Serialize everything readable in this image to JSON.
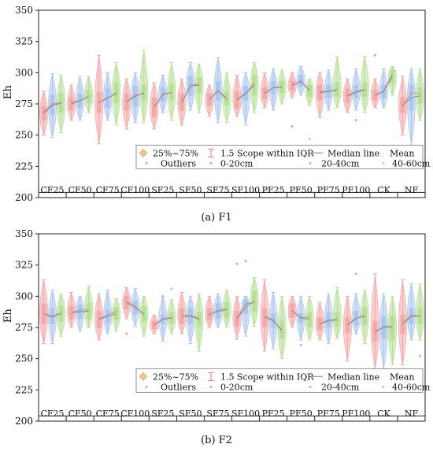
{
  "legend": {
    "box": "25%~75%",
    "whisker": "1.5 Scope within IQR",
    "median": "Median line",
    "mean": "Mean",
    "outliers": "Outliers",
    "d1": "0-20cm",
    "d2": "20-40cm",
    "d3": "40-60cm"
  },
  "colors": {
    "d1": "#f2a6a6",
    "d2": "#a9c4ec",
    "d3": "#b5de93",
    "box_legend": "#e8c98c",
    "median": "#b8a08a",
    "mean_line": "#8a8a99",
    "whisker": "#e07a7a"
  },
  "chart_data": [
    {
      "type": "box",
      "caption": "(a) F1",
      "ylabel": "Eh",
      "ylim": [
        200,
        350
      ],
      "yticks": [
        200,
        225,
        250,
        275,
        300,
        325,
        350
      ],
      "categories": [
        "CF25",
        "CF50",
        "CF75",
        "CF100",
        "SF25",
        "SF50",
        "SF75",
        "SF100",
        "PF25",
        "PF50",
        "PF75",
        "PF100",
        "CK",
        "NF"
      ],
      "series": [
        {
          "key": "d1",
          "name": "0-20cm",
          "boxes": [
            [
              250,
              262,
              268,
              273,
              285
            ],
            [
              262,
              270,
              276,
              280,
              290
            ],
            [
              243,
              268,
              276,
              284,
              314
            ],
            [
              255,
              270,
              277,
              283,
              295
            ],
            [
              255,
              265,
              272,
              280,
              292
            ],
            [
              258,
              270,
              276,
              283,
              295
            ],
            [
              265,
              274,
              278,
              283,
              290
            ],
            [
              265,
              272,
              278,
              285,
              298
            ],
            [
              272,
              279,
              283,
              288,
              300
            ],
            [
              280,
              286,
              290,
              293,
              300
            ],
            [
              264,
              278,
              285,
              290,
              300
            ],
            [
              268,
              276,
              281,
              287,
              295
            ],
            [
              272,
              278,
              282,
              286,
              295
            ],
            [
              250,
              268,
              273,
              280,
              297
            ]
          ]
        },
        {
          "key": "d2",
          "name": "20-40cm",
          "boxes": [
            [
              248,
              266,
              275,
              282,
              299
            ],
            [
              262,
              272,
              278,
              283,
              297
            ],
            [
              262,
              272,
              280,
              287,
              300
            ],
            [
              260,
              273,
              282,
              289,
              300
            ],
            [
              268,
              277,
              283,
              288,
              298
            ],
            [
              270,
              282,
              290,
              297,
              308
            ],
            [
              260,
              278,
              286,
              293,
              312
            ],
            [
              258,
              278,
              283,
              289,
              300
            ],
            [
              270,
              283,
              288,
              293,
              303
            ],
            [
              282,
              289,
              293,
              298,
              305
            ],
            [
              270,
              280,
              285,
              290,
              302
            ],
            [
              270,
              280,
              284,
              290,
              303
            ],
            [
              272,
              280,
              285,
              290,
              303
            ],
            [
              242,
              270,
              284,
              290,
              303
            ]
          ]
        },
        {
          "key": "d3",
          "name": "40-60cm",
          "boxes": [
            [
              252,
              268,
              276,
              283,
              298
            ],
            [
              268,
              276,
              281,
              286,
              297
            ],
            [
              258,
              276,
              283,
              292,
              308
            ],
            [
              260,
              278,
              283,
              290,
              318
            ],
            [
              262,
              278,
              284,
              290,
              308
            ],
            [
              268,
              284,
              291,
              296,
              307
            ],
            [
              260,
              274,
              278,
              285,
              300
            ],
            [
              268,
              282,
              292,
              298,
              308
            ],
            [
              275,
              284,
              288,
              293,
              302
            ],
            [
              274,
              281,
              286,
              290,
              295
            ],
            [
              272,
              281,
              286,
              292,
              313
            ],
            [
              268,
              281,
              286,
              292,
              313
            ],
            [
              282,
              292,
              299,
              302,
              305
            ],
            [
              262,
              275,
              283,
              288,
              303
            ]
          ]
        }
      ],
      "outliers": [
        {
          "category": "PF50",
          "series": "d1",
          "value": 257
        },
        {
          "category": "PF50",
          "series": "d3",
          "value": 247
        },
        {
          "category": "PF100",
          "series": "d2",
          "value": 262
        },
        {
          "category": "CK",
          "series": "d1",
          "value": 314
        }
      ],
      "grid": false,
      "legend_position": "bottom"
    },
    {
      "type": "box",
      "caption": "(b) F2",
      "ylabel": "Eh",
      "ylim": [
        200,
        350
      ],
      "yticks": [
        200,
        225,
        250,
        275,
        300,
        325,
        350
      ],
      "categories": [
        "CF25",
        "CF50",
        "CF75",
        "CF100",
        "SF25",
        "SF50",
        "SF75",
        "SF100",
        "PF25",
        "PF50",
        "PF75",
        "PF100",
        "CK",
        "NF"
      ],
      "series": [
        {
          "key": "d1",
          "name": "0-20cm",
          "boxes": [
            [
              262,
              278,
              286,
              294,
              313
            ],
            [
              275,
              282,
              287,
              292,
              303
            ],
            [
              265,
              275,
              282,
              288,
              302
            ],
            [
              282,
              290,
              296,
              300,
              307
            ],
            [
              270,
              274,
              277,
              280,
              285
            ],
            [
              270,
              278,
              284,
              290,
              303
            ],
            [
              275,
              281,
              285,
              290,
              300
            ],
            [
              268,
              276,
              282,
              288,
              300
            ],
            [
              256,
              276,
              284,
              290,
              313
            ],
            [
              275,
              283,
              288,
              294,
              300
            ],
            [
              265,
              273,
              278,
              283,
              295
            ],
            [
              248,
              271,
              277,
              283,
              300
            ],
            [
              242,
              264,
              271,
              280,
              318
            ],
            [
              245,
              270,
              278,
              285,
              313
            ]
          ]
        },
        {
          "key": "d2",
          "name": "20-40cm",
          "boxes": [
            [
              262,
              278,
              283,
              290,
              305
            ],
            [
              272,
              282,
              289,
              293,
              300
            ],
            [
              270,
              279,
              285,
              289,
              305
            ],
            [
              276,
              286,
              292,
              296,
              306
            ],
            [
              264,
              278,
              282,
              285,
              300
            ],
            [
              262,
              278,
              285,
              290,
              300
            ],
            [
              275,
              282,
              289,
              294,
              302
            ],
            [
              268,
              286,
              294,
              297,
              300
            ],
            [
              258,
              275,
              281,
              286,
              303
            ],
            [
              265,
              279,
              283,
              286,
              300
            ],
            [
              262,
              275,
              280,
              287,
              302
            ],
            [
              270,
              277,
              282,
              288,
              302
            ],
            [
              242,
              266,
              276,
              284,
              302
            ],
            [
              265,
              278,
              285,
              290,
              310
            ]
          ]
        },
        {
          "key": "d3",
          "name": "40-60cm",
          "boxes": [
            [
              268,
              280,
              287,
              292,
              302
            ],
            [
              275,
              282,
              289,
              294,
              308
            ],
            [
              272,
              281,
              288,
              291,
              298
            ],
            [
              268,
              280,
              285,
              292,
              300
            ],
            [
              270,
              278,
              283,
              287,
              297
            ],
            [
              256,
              276,
              282,
              287,
              302
            ],
            [
              275,
              283,
              290,
              295,
              305
            ],
            [
              276,
              288,
              295,
              304,
              315
            ],
            [
              250,
              266,
              272,
              280,
              300
            ],
            [
              265,
              276,
              283,
              287,
              300
            ],
            [
              266,
              276,
              281,
              287,
              307
            ],
            [
              262,
              277,
              285,
              291,
              305
            ],
            [
              245,
              265,
              276,
              285,
              300
            ],
            [
              265,
              278,
              284,
              290,
              310
            ]
          ]
        }
      ],
      "outliers": [
        {
          "category": "CF100",
          "series": "d1",
          "value": 270
        },
        {
          "category": "SF25",
          "series": "d3",
          "value": 306
        },
        {
          "category": "SF25",
          "series": "d2",
          "value": 300
        },
        {
          "category": "SF100",
          "series": "d1",
          "value": 326
        },
        {
          "category": "SF100",
          "series": "d2",
          "value": 328
        },
        {
          "category": "SF100",
          "series": "d1",
          "value": 266
        },
        {
          "category": "PF50",
          "series": "d2",
          "value": 261
        },
        {
          "category": "PF100",
          "series": "d2",
          "value": 318
        },
        {
          "category": "NF",
          "series": "d3",
          "value": 252
        }
      ],
      "grid": false,
      "legend_position": "bottom"
    }
  ]
}
